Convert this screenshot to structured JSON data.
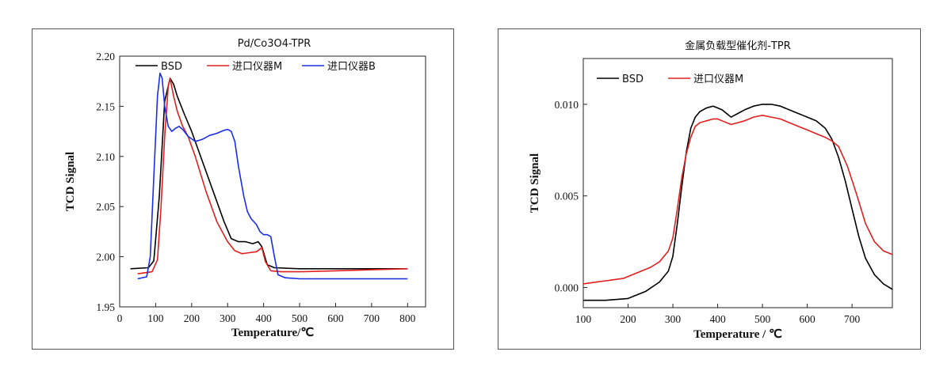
{
  "chart_data": [
    {
      "type": "line",
      "title": "Pd/Co3O4-TPR",
      "xlabel": "Temperature/℃",
      "ylabel": "TCD Signal",
      "xlim": [
        0,
        850
      ],
      "ylim": [
        1.95,
        2.2
      ],
      "xticks": [
        0,
        100,
        200,
        300,
        400,
        500,
        600,
        700,
        800
      ],
      "yticks": [
        1.95,
        2.0,
        2.05,
        2.1,
        2.15,
        2.2
      ],
      "ytick_labels": [
        "1.95",
        "2.00",
        "2.05",
        "2.10",
        "2.15",
        "2.20"
      ],
      "legend_position": "top",
      "series": [
        {
          "name": "BSD",
          "color": "#000000",
          "x": [
            30,
            80,
            95,
            110,
            125,
            140,
            150,
            160,
            180,
            200,
            230,
            260,
            290,
            310,
            330,
            350,
            370,
            385,
            395,
            410,
            430,
            500,
            600,
            700,
            800
          ],
          "y": [
            1.988,
            1.989,
            1.996,
            2.06,
            2.155,
            2.178,
            2.172,
            2.16,
            2.142,
            2.125,
            2.095,
            2.065,
            2.035,
            2.018,
            2.015,
            2.015,
            2.013,
            2.015,
            2.01,
            1.992,
            1.989,
            1.988,
            1.988,
            1.988,
            1.988
          ]
        },
        {
          "name": "进口仪器M",
          "color": "#e02020",
          "x": [
            50,
            90,
            105,
            115,
            125,
            135,
            140,
            150,
            160,
            175,
            190,
            210,
            240,
            270,
            300,
            320,
            340,
            360,
            380,
            395,
            405,
            420,
            450,
            500,
            600,
            700,
            800
          ],
          "y": [
            1.983,
            1.985,
            1.997,
            2.05,
            2.12,
            2.17,
            2.178,
            2.16,
            2.145,
            2.13,
            2.12,
            2.1,
            2.065,
            2.035,
            2.015,
            2.006,
            2.003,
            2.004,
            2.005,
            2.009,
            1.995,
            1.986,
            1.985,
            1.985,
            1.986,
            1.987,
            1.988
          ]
        },
        {
          "name": "进口仪器B",
          "color": "#1a2ee6",
          "x": [
            50,
            75,
            85,
            95,
            105,
            112,
            118,
            125,
            135,
            145,
            155,
            165,
            175,
            190,
            210,
            230,
            250,
            270,
            290,
            300,
            310,
            320,
            330,
            345,
            355,
            365,
            380,
            390,
            400,
            410,
            420,
            430,
            440,
            460,
            500,
            600,
            700,
            800
          ],
          "y": [
            1.978,
            1.98,
            2.0,
            2.08,
            2.16,
            2.183,
            2.178,
            2.15,
            2.13,
            2.125,
            2.128,
            2.13,
            2.127,
            2.12,
            2.115,
            2.117,
            2.121,
            2.123,
            2.126,
            2.127,
            2.125,
            2.115,
            2.09,
            2.06,
            2.045,
            2.038,
            2.032,
            2.025,
            2.022,
            2.022,
            2.02,
            2.0,
            1.982,
            1.979,
            1.978,
            1.978,
            1.978,
            1.978
          ]
        }
      ]
    },
    {
      "type": "line",
      "title": "金属负载型催化剂-TPR",
      "xlabel": "Temperature / ℃",
      "ylabel": "TCD Signal",
      "xlim": [
        100,
        790
      ],
      "ylim": [
        -0.0011,
        0.0125
      ],
      "xticks": [
        100,
        200,
        300,
        400,
        500,
        600,
        700
      ],
      "yticks": [
        0.0,
        0.005,
        0.01
      ],
      "ytick_labels": [
        "0.000",
        "0.005",
        "0.010"
      ],
      "legend_position": "top-left",
      "series": [
        {
          "name": "BSD",
          "color": "#000000",
          "x": [
            100,
            150,
            200,
            240,
            270,
            290,
            300,
            310,
            320,
            330,
            340,
            350,
            360,
            375,
            390,
            400,
            410,
            430,
            445,
            460,
            480,
            500,
            520,
            540,
            560,
            580,
            600,
            620,
            640,
            655,
            670,
            685,
            700,
            715,
            730,
            750,
            770,
            790
          ],
          "y": [
            -0.0007,
            -0.0007,
            -0.0006,
            -0.0002,
            0.0003,
            0.0009,
            0.0017,
            0.0035,
            0.0055,
            0.0074,
            0.0087,
            0.0093,
            0.0096,
            0.0098,
            0.0099,
            0.0098,
            0.0097,
            0.0093,
            0.0095,
            0.0097,
            0.0099,
            0.01,
            0.01,
            0.0099,
            0.0097,
            0.0095,
            0.0093,
            0.0091,
            0.0087,
            0.0081,
            0.0071,
            0.0058,
            0.0043,
            0.0028,
            0.0016,
            0.0007,
            0.0002,
            -0.0001
          ]
        },
        {
          "name": "进口仪器M",
          "color": "#e02020",
          "x": [
            100,
            130,
            160,
            190,
            220,
            250,
            270,
            290,
            300,
            310,
            320,
            330,
            340,
            350,
            360,
            375,
            390,
            400,
            410,
            430,
            445,
            460,
            480,
            500,
            520,
            540,
            560,
            580,
            600,
            620,
            640,
            655,
            670,
            690,
            710,
            730,
            750,
            770,
            790
          ],
          "y": [
            0.0002,
            0.0003,
            0.0004,
            0.0005,
            0.0008,
            0.0011,
            0.0014,
            0.002,
            0.0027,
            0.0043,
            0.006,
            0.0073,
            0.0082,
            0.0088,
            0.009,
            0.0091,
            0.0092,
            0.0092,
            0.0091,
            0.0089,
            0.009,
            0.0091,
            0.0093,
            0.0094,
            0.0093,
            0.0092,
            0.009,
            0.0088,
            0.0086,
            0.0084,
            0.0082,
            0.008,
            0.0077,
            0.0066,
            0.0051,
            0.0035,
            0.0025,
            0.002,
            0.0018
          ]
        }
      ]
    }
  ]
}
